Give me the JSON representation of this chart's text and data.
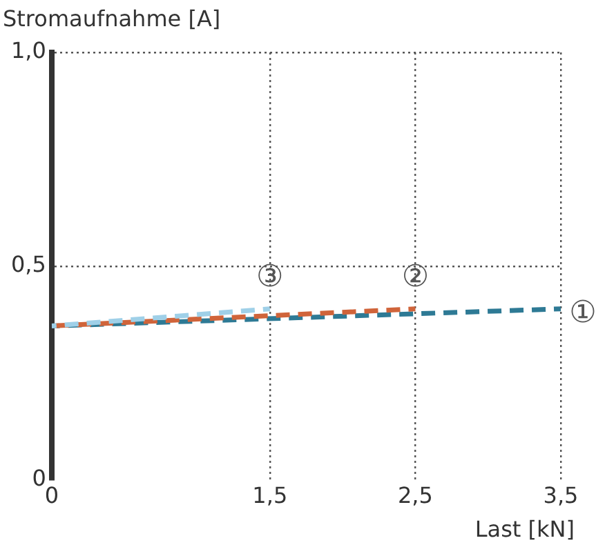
{
  "chart_data": {
    "type": "line",
    "ylabel": "Stromaufnahme [A]",
    "xlabel": "Last [kN]",
    "xlim": [
      0,
      3.5
    ],
    "xticks": [
      0,
      {
        "value": 1.5,
        "label": "1,5"
      },
      {
        "value": 2.5,
        "label": "2,5"
      },
      {
        "value": 3.5,
        "label": "3,5"
      }
    ],
    "ylim": [
      0,
      1
    ],
    "yticks": [
      0,
      {
        "value": 0.5,
        "label": "0,5"
      },
      {
        "value": 1,
        "label": "1,0"
      }
    ],
    "grid": true,
    "legend": false,
    "marker": "none",
    "line_style": "dashed",
    "series": [
      {
        "color": "#2e7a95",
        "x": [
          0,
          3.5
        ],
        "values": [
          0.36,
          0.4
        ]
      },
      {
        "color": "#d0643a",
        "x": [
          0,
          2.5
        ],
        "values": [
          0.36,
          0.4
        ]
      },
      {
        "color": "#9fd0e8",
        "x": [
          0,
          1.5
        ],
        "values": [
          0.36,
          0.4
        ]
      }
    ],
    "annotations": [
      {
        "text": "①",
        "x": 3.5,
        "y": 0.4
      },
      {
        "text": "②",
        "x": 2.5,
        "y": 0.4
      },
      {
        "text": "③",
        "x": 1.5,
        "y": 0.4
      }
    ]
  }
}
